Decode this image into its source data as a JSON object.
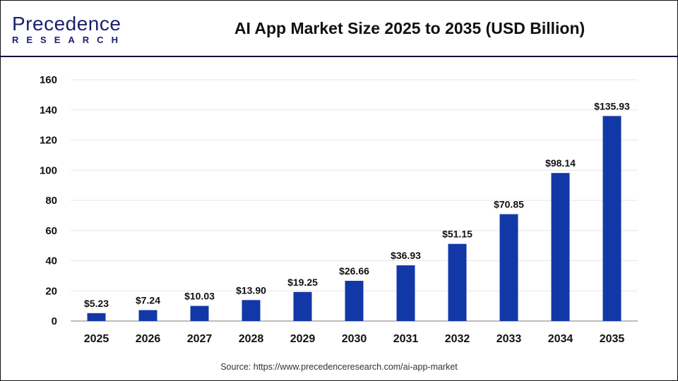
{
  "logo": {
    "brand": "Precedence",
    "sub": "RESEARCH"
  },
  "chart_data": {
    "type": "bar",
    "title": "AI App Market Size 2025 to 2035 (USD Billion)",
    "categories": [
      "2025",
      "2026",
      "2027",
      "2028",
      "2029",
      "2030",
      "2031",
      "2032",
      "2033",
      "2034",
      "2035"
    ],
    "values": [
      5.23,
      7.24,
      10.03,
      13.9,
      19.25,
      26.66,
      36.93,
      51.15,
      70.85,
      98.14,
      135.93
    ],
    "data_labels": [
      "$5.23",
      "$7.24",
      "$10.03",
      "$13.90",
      "$19.25",
      "$26.66",
      "$36.93",
      "$51.15",
      "$70.85",
      "$98.14",
      "$135.93"
    ],
    "xlabel": "",
    "ylabel": "",
    "ylim": [
      0,
      160
    ],
    "yticks": [
      0,
      20,
      40,
      60,
      80,
      100,
      120,
      140,
      160
    ],
    "grid": true,
    "bar_color": "#1238a8"
  },
  "source": "Source: https://www.precedenceresearch.com/ai-app-market"
}
